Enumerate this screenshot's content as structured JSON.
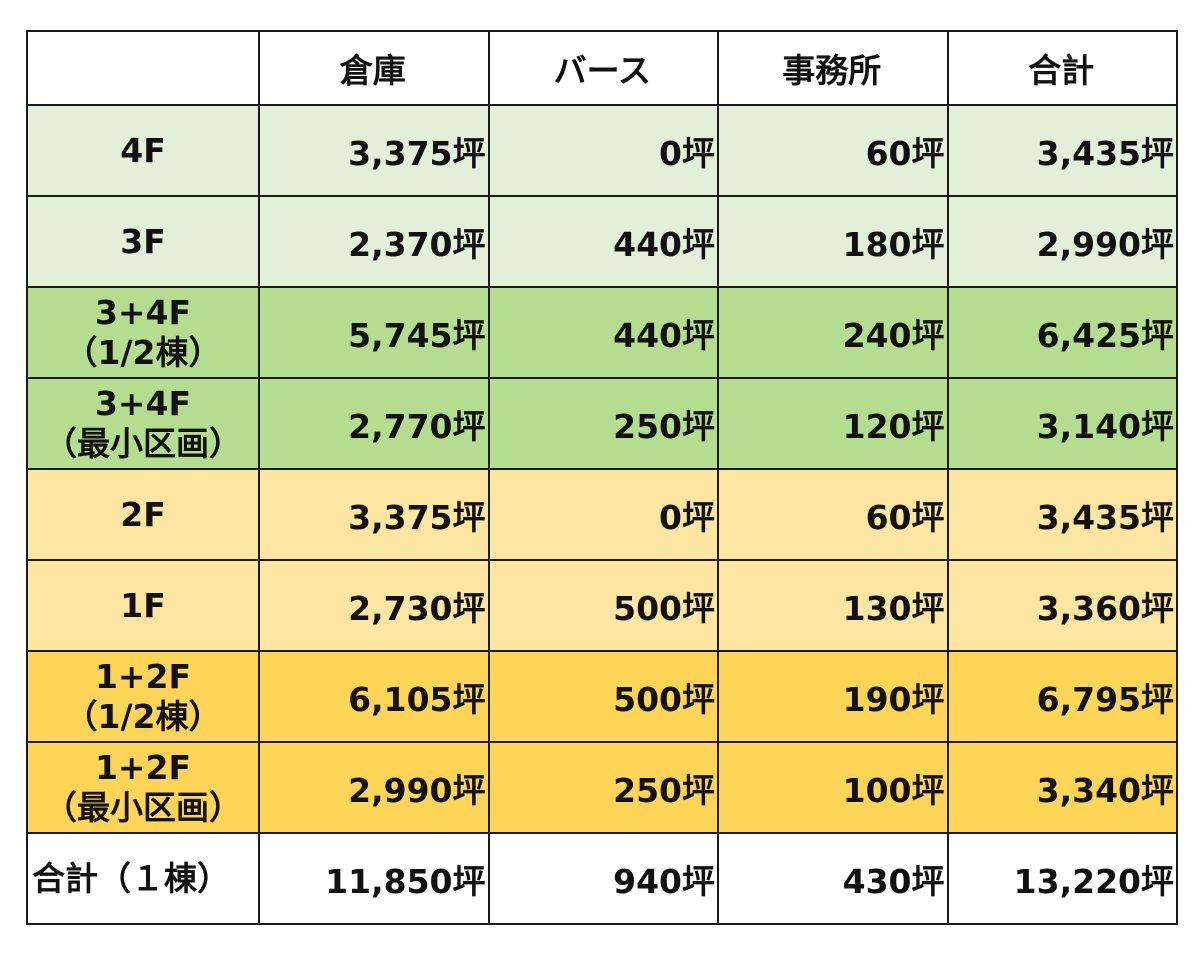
{
  "headers": [
    "",
    "倉庫",
    "バース",
    "事務所",
    "合計"
  ],
  "rows": [
    {
      "label": [
        "4F"
      ],
      "values": [
        "3,375坪",
        "0坪",
        "60坪",
        "3,435坪"
      ],
      "color": "#e2efd9"
    },
    {
      "label": [
        "3F"
      ],
      "values": [
        "2,370坪",
        "440坪",
        "180坪",
        "2,990坪"
      ],
      "color": "#e2efd9"
    },
    {
      "label": [
        "3+4F",
        "（1/2棟）"
      ],
      "values": [
        "5,745坪",
        "440坪",
        "240坪",
        "6,425坪"
      ],
      "color": "#b5dd90"
    },
    {
      "label": [
        "3+4F",
        "（最小区画）"
      ],
      "values": [
        "2,770坪",
        "250坪",
        "120坪",
        "3,140坪"
      ],
      "color": "#b5dd90"
    },
    {
      "label": [
        "2F"
      ],
      "values": [
        "3,375坪",
        "0坪",
        "60坪",
        "3,435坪"
      ],
      "color": "#fde6a2"
    },
    {
      "label": [
        "1F"
      ],
      "values": [
        "2,730坪",
        "500坪",
        "130坪",
        "3,360坪"
      ],
      "color": "#fde6a2"
    },
    {
      "label": [
        "1+2F",
        "（1/2棟）"
      ],
      "values": [
        "6,105坪",
        "500坪",
        "190坪",
        "6,795坪"
      ],
      "color": "#ffd558"
    },
    {
      "label": [
        "1+2F",
        "（最小区画）"
      ],
      "values": [
        "2,990坪",
        "250坪",
        "100坪",
        "3,340坪"
      ],
      "color": "#ffd558"
    },
    {
      "label": [
        "合計（１棟）"
      ],
      "values": [
        "11,850坪",
        "940坪",
        "430坪",
        "13,220坪"
      ],
      "color": "#ffffff"
    }
  ]
}
